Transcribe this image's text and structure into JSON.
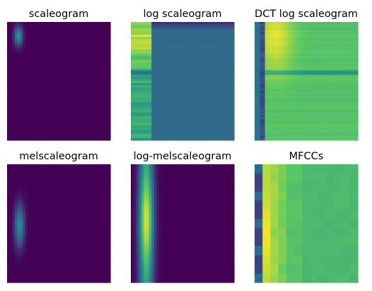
{
  "chart_data": [
    {
      "type": "heatmap",
      "title": "scaleogram",
      "palette": [
        "#440154",
        "#3b528b",
        "#21918c",
        "#5ec962",
        "#fde725"
      ]
    },
    {
      "type": "heatmap",
      "title": "log scaleogram",
      "palette": [
        "#440154",
        "#3b528b",
        "#21918c",
        "#5ec962",
        "#fde725"
      ]
    },
    {
      "type": "heatmap",
      "title": "DCT log scaleogram",
      "palette": [
        "#440154",
        "#3b528b",
        "#21918c",
        "#5ec962",
        "#fde725"
      ]
    },
    {
      "type": "heatmap",
      "title": "melscaleogram",
      "palette": [
        "#440154",
        "#3b528b",
        "#21918c",
        "#5ec962",
        "#fde725"
      ]
    },
    {
      "type": "heatmap",
      "title": "log-melscaleogram",
      "palette": [
        "#440154",
        "#3b528b",
        "#21918c",
        "#5ec962",
        "#fde725"
      ]
    },
    {
      "type": "heatmap",
      "title": "MFCCs",
      "palette": [
        "#440154",
        "#3b528b",
        "#21918c",
        "#5ec962",
        "#fde725"
      ]
    }
  ]
}
